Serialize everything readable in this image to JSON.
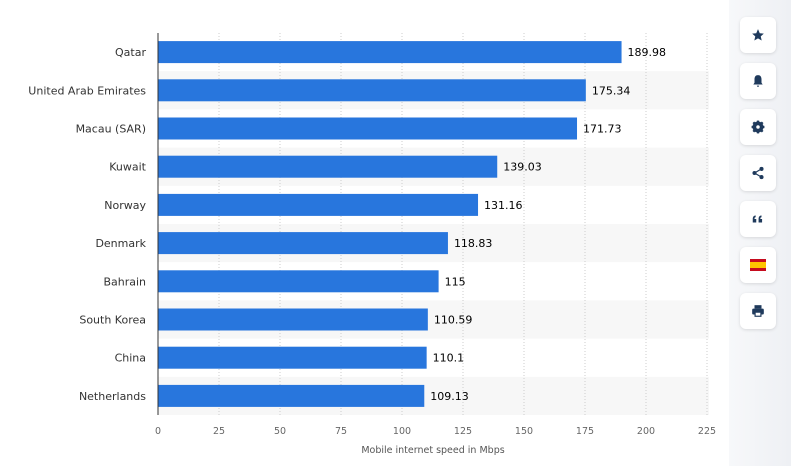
{
  "chart_data": {
    "type": "bar",
    "orientation": "horizontal",
    "categories": [
      "Qatar",
      "United Arab Emirates",
      "Macau (SAR)",
      "Kuwait",
      "Norway",
      "Denmark",
      "Bahrain",
      "South Korea",
      "China",
      "Netherlands"
    ],
    "values": [
      189.98,
      175.34,
      171.73,
      139.03,
      131.16,
      118.83,
      115,
      110.59,
      110.1,
      109.13
    ],
    "value_labels": [
      "189.98",
      "175.34",
      "171.73",
      "139.03",
      "131.16",
      "118.83",
      "115",
      "110.59",
      "110.1",
      "109.13"
    ],
    "xlabel": "Mobile internet speed in Mbps",
    "xlim": [
      0,
      225
    ],
    "xticks": [
      "0",
      "25",
      "50",
      "75",
      "100",
      "125",
      "150",
      "175",
      "200",
      "225"
    ],
    "grid": "vertical dotted",
    "bar_color": "#2876dd"
  },
  "sidebar": {
    "buttons": [
      {
        "icon": "star-icon"
      },
      {
        "icon": "bell-icon"
      },
      {
        "icon": "gear-icon"
      },
      {
        "icon": "share-icon"
      },
      {
        "icon": "quote-icon"
      },
      {
        "icon": "spain-flag-icon"
      },
      {
        "icon": "print-icon"
      }
    ],
    "icon_color": "#1f3a5c"
  }
}
